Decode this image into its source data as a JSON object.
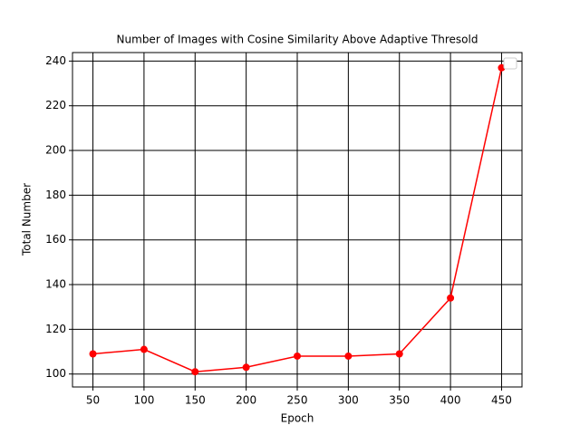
{
  "chart_data": {
    "type": "line",
    "title": "Number of Images with Cosine Similarity Above Adaptive Thresold",
    "x_label": "Epoch",
    "y_label": "Total Number",
    "x": [
      50,
      100,
      150,
      200,
      250,
      300,
      350,
      400,
      450
    ],
    "series": [
      {
        "color": "#ff0000",
        "values": [
          109,
          111,
          101,
          103,
          108,
          108,
          109,
          134,
          237
        ]
      }
    ],
    "xlim": [
      30,
      470
    ],
    "xticks": [
      50,
      100,
      150,
      200,
      250,
      300,
      350,
      400,
      450
    ],
    "ylim": [
      94.2,
      243.8
    ],
    "yticks": [
      100,
      120,
      140,
      160,
      180,
      200,
      220,
      240
    ],
    "grid": true,
    "grid_color": "#000000"
  }
}
